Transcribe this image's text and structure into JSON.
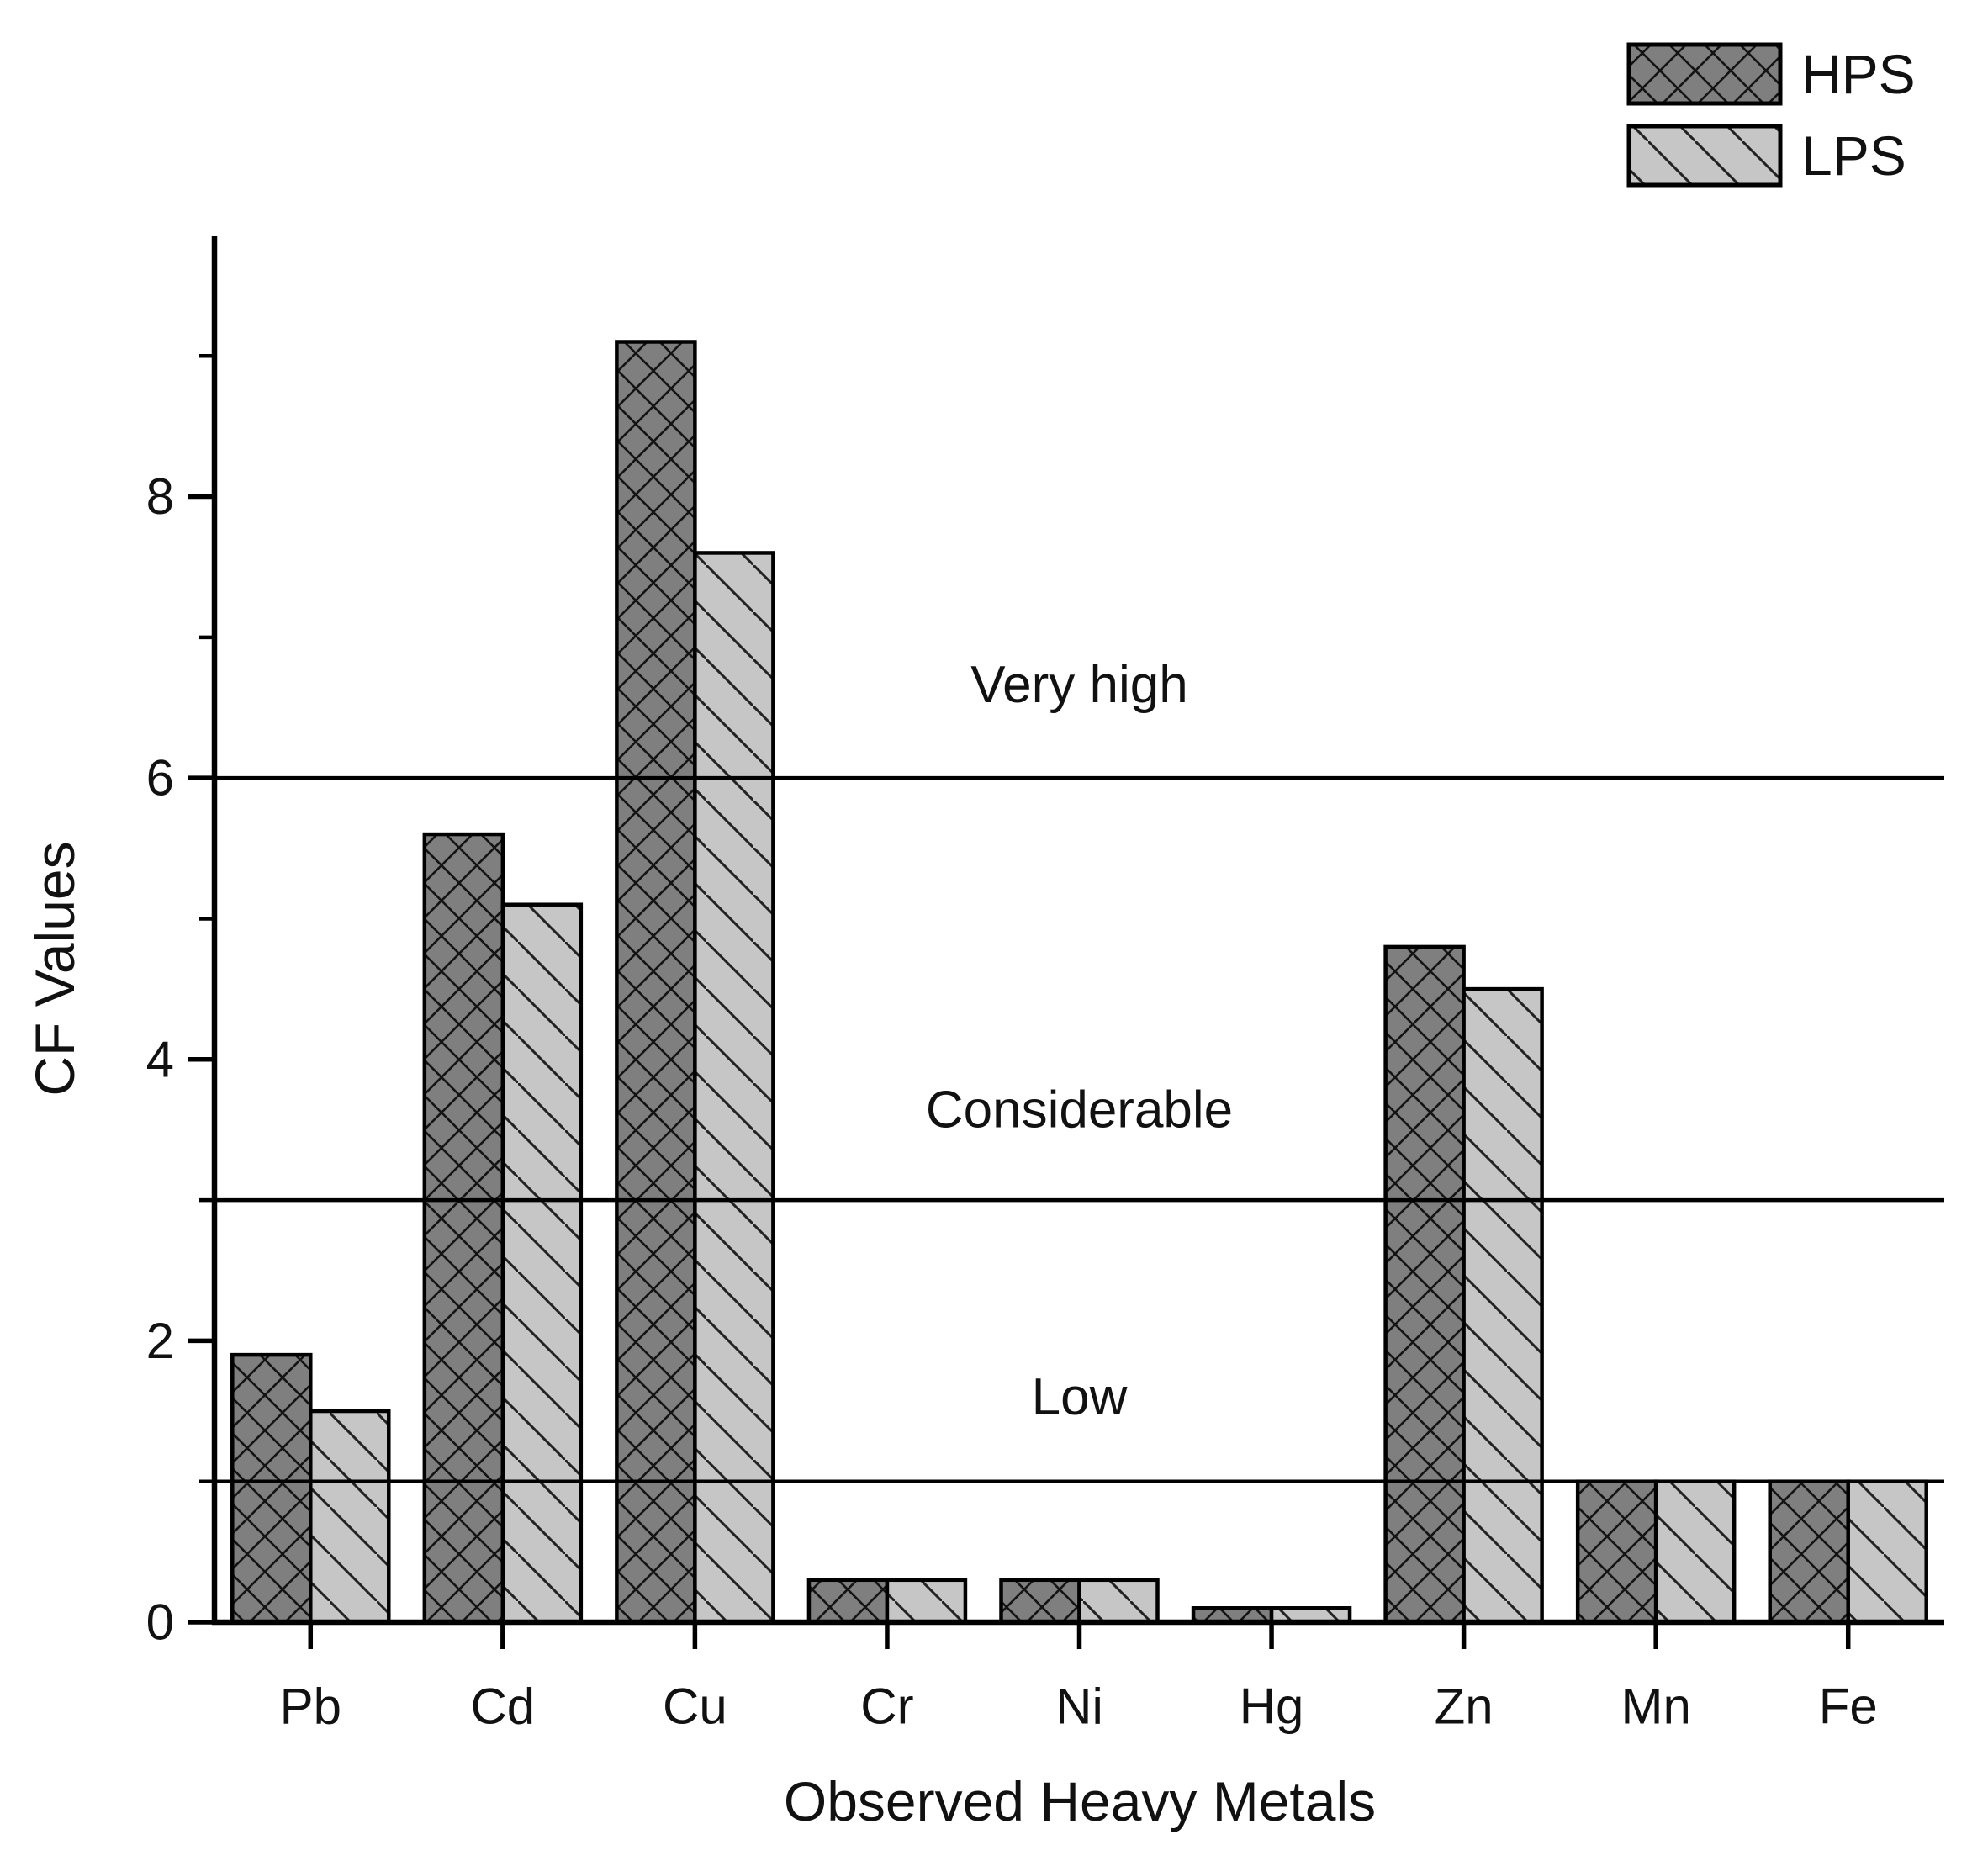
{
  "colors": {
    "background": "#ffffff",
    "axis": "#000000",
    "text": "#111111",
    "bar_outline": "#000000",
    "hps_fill": "#7f7f7f",
    "hps_hatch": "#141414",
    "lps_fill": "#c6c6c6",
    "lps_hatch": "#222222",
    "reference_line": "#000000"
  },
  "chart_data": {
    "type": "bar",
    "title": "",
    "categories": [
      "Pb",
      "Cd",
      "Cu",
      "Cr",
      "Ni",
      "Hg",
      "Zn",
      "Mn",
      "Fe"
    ],
    "series": [
      {
        "name": "HPS",
        "pattern": "crosshatch",
        "values": [
          1.9,
          5.6,
          9.1,
          0.3,
          0.3,
          0.1,
          4.8,
          1.0,
          1.0
        ]
      },
      {
        "name": "LPS",
        "pattern": "diagonal",
        "values": [
          1.5,
          5.1,
          7.6,
          0.3,
          0.3,
          0.1,
          4.5,
          1.0,
          1.0
        ]
      }
    ],
    "xlabel": "Observed Heavy Metals",
    "ylabel": "CF Values",
    "yticks": [
      0,
      2,
      4,
      6,
      8
    ],
    "minor_yticks": [
      1,
      3,
      5,
      7,
      9
    ],
    "ylim": [
      0,
      9.85
    ],
    "grid": false,
    "legend_position": "top-right",
    "reference_lines": [
      {
        "value": 1
      },
      {
        "value": 3
      },
      {
        "value": 6
      }
    ],
    "annotations": [
      {
        "text": "Very high",
        "value": 6.66
      },
      {
        "text": "Considerable",
        "value": 3.64
      },
      {
        "text": "Low",
        "value": 1.6
      }
    ]
  }
}
